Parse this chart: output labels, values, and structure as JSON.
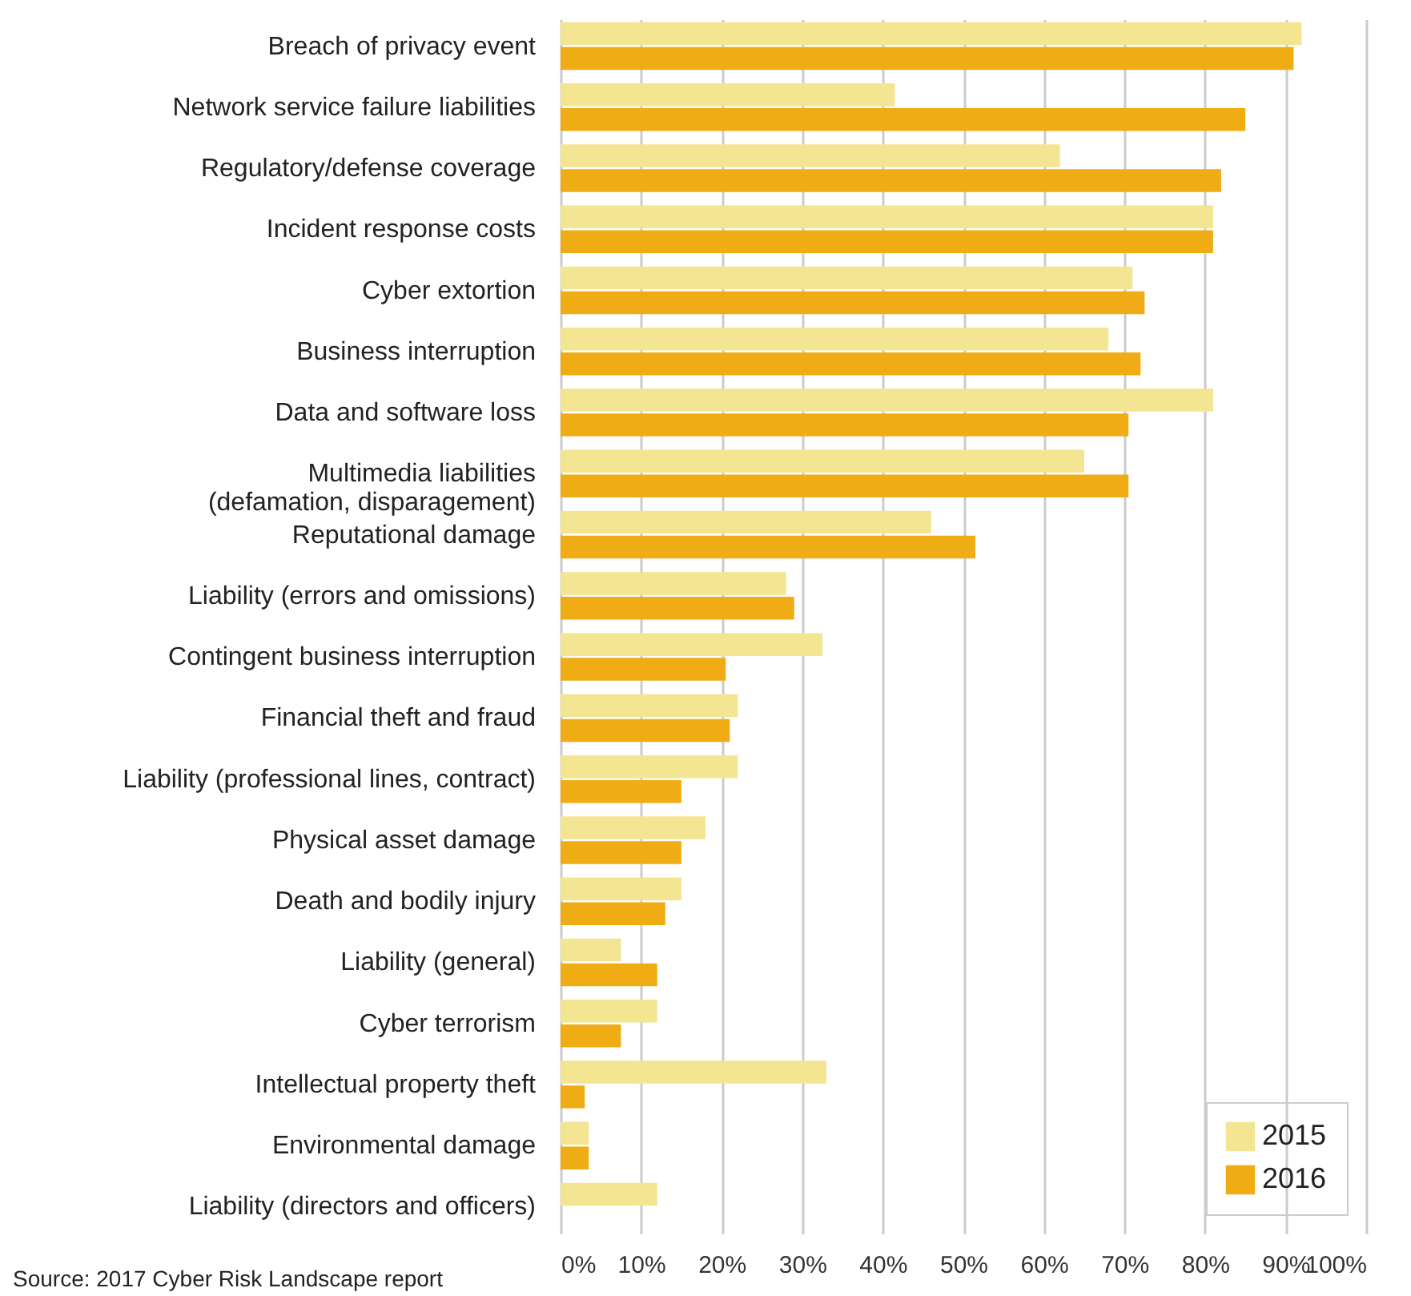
{
  "chart_data": {
    "type": "bar",
    "orientation": "horizontal",
    "categories": [
      "Breach of privacy event",
      "Network service failure liabilities",
      "Regulatory/defense coverage",
      "Incident response costs",
      "Cyber extortion",
      "Business interruption",
      "Data and software loss",
      "Multimedia liabilities\n(defamation, disparagement)",
      "Reputational damage",
      "Liability (errors and omissions)",
      "Contingent business interruption",
      "Financial theft and fraud",
      "Liability (professional lines, contract)",
      "Physical asset damage",
      "Death and bodily injury",
      "Liability (general)",
      "Cyber terrorism",
      "Intellectual property theft",
      "Environmental damage",
      "Liability (directors and officers)"
    ],
    "series": [
      {
        "name": "2015",
        "color": "#f3e592",
        "values": [
          92,
          41.5,
          62,
          81,
          71,
          68,
          81,
          65,
          46,
          28,
          32.5,
          22,
          22,
          18,
          15,
          7.5,
          12,
          33,
          3.5,
          12
        ]
      },
      {
        "name": "2016",
        "color": "#f0ac14",
        "values": [
          91,
          85,
          82,
          81,
          72.5,
          72,
          70.5,
          70.5,
          51.5,
          29,
          20.5,
          21,
          15,
          15,
          13,
          12,
          7.5,
          3,
          3.5,
          0
        ]
      }
    ],
    "xlim": [
      0,
      100
    ],
    "xticks": [
      {
        "value": 0,
        "label": "0%"
      },
      {
        "value": 10,
        "label": "10%"
      },
      {
        "value": 20,
        "label": "20%"
      },
      {
        "value": 30,
        "label": "30%"
      },
      {
        "value": 40,
        "label": "40%"
      },
      {
        "value": 50,
        "label": "50%"
      },
      {
        "value": 60,
        "label": "60%"
      },
      {
        "value": 70,
        "label": "70%"
      },
      {
        "value": 80,
        "label": "80%"
      },
      {
        "value": 90,
        "label": "90%"
      },
      {
        "value": 100,
        "label": "100%"
      }
    ],
    "grid": "x",
    "legend": "bottom right",
    "annotations": [
      "Source: 2017 Cyber Risk Landscape report"
    ]
  }
}
